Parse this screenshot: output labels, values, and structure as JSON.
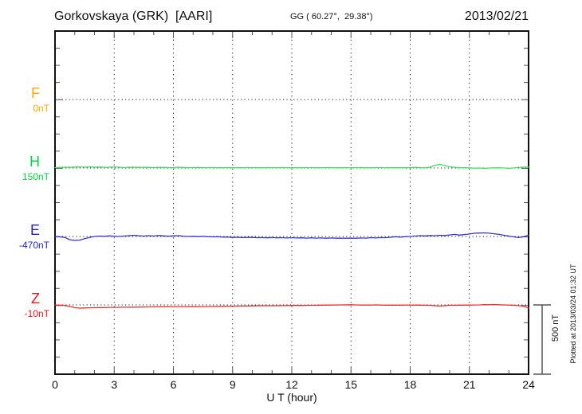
{
  "header": {
    "station_title": "Gorkovskaya (GRK)  [AARI]",
    "coordinates": "GG ( 60.27°,  29.38°)",
    "date": "2013/02/21"
  },
  "side": {
    "scale_label": "500 nT",
    "plotted_note": "Plotted at 2013/03/24 01:32 UT"
  },
  "channels": [
    {
      "id": "F",
      "label": "F",
      "baseline_label": "0nT",
      "base_value": 0,
      "color": "#FFAA00",
      "trace_color": "#FFAA00"
    },
    {
      "id": "H",
      "label": "H",
      "baseline_label": "150nT",
      "base_value": 150,
      "color": "#00D93E",
      "trace_color": "#3FDE63"
    },
    {
      "id": "E",
      "label": "E",
      "baseline_label": "-470nT",
      "base_value": -470,
      "color": "#2121E8",
      "trace_color": "#3434CE"
    },
    {
      "id": "Z",
      "label": "Z",
      "baseline_label": "-10nT",
      "base_value": -10,
      "color": "#F01616",
      "trace_color": "#E43030"
    }
  ],
  "chart_data": {
    "type": "line",
    "title": "Gorkovskaya (GRK) [AARI] magnetogram, 2013/02/21",
    "xlabel": "U T (hour)",
    "ylabel": "nT",
    "x_range": [
      0,
      24
    ],
    "x_ticks": [
      0,
      3,
      6,
      9,
      12,
      15,
      18,
      21,
      24
    ],
    "x_minor_tick": 1,
    "y_minor_tick_nT": 125,
    "scale_bar_nT": 500,
    "grid": "dotted vertical lines every 3 h; dotted horizontal line at each channel baseline",
    "legend_position": "left margin (colored channel letters)",
    "series": [
      {
        "name": "F",
        "baseline_nT": 0,
        "units": "nT",
        "points": []
      },
      {
        "name": "H",
        "baseline_nT": 150,
        "units": "nT",
        "points": [
          [
            0,
            153
          ],
          [
            0.25,
            154
          ],
          [
            0.5,
            156
          ],
          [
            0.75,
            155
          ],
          [
            1,
            157
          ],
          [
            1.25,
            158
          ],
          [
            1.5,
            156
          ],
          [
            1.75,
            158
          ],
          [
            2,
            156
          ],
          [
            2.25,
            157
          ],
          [
            2.5,
            155
          ],
          [
            2.75,
            156
          ],
          [
            3,
            158
          ],
          [
            3.25,
            156
          ],
          [
            3.5,
            153
          ],
          [
            3.75,
            155
          ],
          [
            4,
            156
          ],
          [
            4.25,
            154
          ],
          [
            4.5,
            155
          ],
          [
            4.75,
            154
          ],
          [
            5,
            153
          ],
          [
            5.25,
            155
          ],
          [
            5.5,
            154
          ],
          [
            5.75,
            153
          ],
          [
            6,
            153
          ],
          [
            6.25,
            156
          ],
          [
            6.5,
            154
          ],
          [
            6.75,
            153
          ],
          [
            7,
            153
          ],
          [
            7.25,
            154
          ],
          [
            7.5,
            152
          ],
          [
            7.75,
            153
          ],
          [
            8,
            153
          ],
          [
            8.25,
            152
          ],
          [
            8.5,
            152
          ],
          [
            8.75,
            153
          ],
          [
            9,
            153
          ],
          [
            9.25,
            152
          ],
          [
            9.5,
            152
          ],
          [
            9.75,
            153
          ],
          [
            10,
            153
          ],
          [
            10.25,
            152
          ],
          [
            10.5,
            152
          ],
          [
            10.75,
            153
          ],
          [
            11,
            152
          ],
          [
            11.25,
            153
          ],
          [
            11.5,
            153
          ],
          [
            11.75,
            152
          ],
          [
            12,
            152
          ],
          [
            12.25,
            153
          ],
          [
            12.5,
            152
          ],
          [
            12.75,
            153
          ],
          [
            13,
            153
          ],
          [
            13.25,
            152
          ],
          [
            13.5,
            152
          ],
          [
            13.75,
            153
          ],
          [
            14,
            153
          ],
          [
            14.25,
            152
          ],
          [
            14.5,
            152
          ],
          [
            14.75,
            153
          ],
          [
            15,
            152
          ],
          [
            15.25,
            152
          ],
          [
            15.5,
            153
          ],
          [
            15.75,
            152
          ],
          [
            16,
            152
          ],
          [
            16.25,
            153
          ],
          [
            16.5,
            153
          ],
          [
            16.75,
            152
          ],
          [
            17,
            153
          ],
          [
            17.25,
            152
          ],
          [
            17.5,
            152
          ],
          [
            17.75,
            153
          ],
          [
            18,
            153
          ],
          [
            18.25,
            155
          ],
          [
            18.5,
            153
          ],
          [
            18.75,
            152
          ],
          [
            19,
            155
          ],
          [
            19.25,
            170
          ],
          [
            19.5,
            176
          ],
          [
            19.75,
            168
          ],
          [
            20,
            159
          ],
          [
            20.25,
            155
          ],
          [
            20.5,
            153
          ],
          [
            20.75,
            152
          ],
          [
            21,
            151
          ],
          [
            21.25,
            149
          ],
          [
            21.5,
            150
          ],
          [
            21.75,
            147
          ],
          [
            22,
            150
          ],
          [
            22.25,
            151
          ],
          [
            22.5,
            152
          ],
          [
            22.75,
            150
          ],
          [
            23,
            147
          ],
          [
            23.25,
            150
          ],
          [
            23.5,
            155
          ],
          [
            23.75,
            156
          ],
          [
            24,
            157
          ]
        ]
      },
      {
        "name": "E",
        "baseline_nT": -470,
        "units": "nT",
        "points": [
          [
            0,
            -470
          ],
          [
            0.25,
            -473
          ],
          [
            0.5,
            -477
          ],
          [
            0.75,
            -494
          ],
          [
            1,
            -499
          ],
          [
            1.25,
            -497
          ],
          [
            1.5,
            -486
          ],
          [
            1.75,
            -477
          ],
          [
            2,
            -470
          ],
          [
            2.25,
            -467
          ],
          [
            2.5,
            -469
          ],
          [
            2.75,
            -466
          ],
          [
            3,
            -468
          ],
          [
            3.25,
            -470
          ],
          [
            3.5,
            -467
          ],
          [
            3.75,
            -464
          ],
          [
            4,
            -461
          ],
          [
            4.25,
            -465
          ],
          [
            4.5,
            -467
          ],
          [
            4.75,
            -464
          ],
          [
            5,
            -467
          ],
          [
            5.25,
            -463
          ],
          [
            5.5,
            -466
          ],
          [
            5.75,
            -468
          ],
          [
            6,
            -466
          ],
          [
            6.25,
            -464
          ],
          [
            6.5,
            -468
          ],
          [
            6.75,
            -470
          ],
          [
            7,
            -469
          ],
          [
            7.25,
            -471
          ],
          [
            7.5,
            -469
          ],
          [
            7.75,
            -472
          ],
          [
            8,
            -473
          ],
          [
            8.25,
            -472
          ],
          [
            8.5,
            -475
          ],
          [
            8.75,
            -474
          ],
          [
            9,
            -477
          ],
          [
            9.25,
            -476
          ],
          [
            9.5,
            -478
          ],
          [
            9.75,
            -477
          ],
          [
            10,
            -477
          ],
          [
            10.25,
            -479
          ],
          [
            10.5,
            -478
          ],
          [
            10.75,
            -480
          ],
          [
            11,
            -478
          ],
          [
            11.25,
            -480
          ],
          [
            11.5,
            -479
          ],
          [
            11.75,
            -481
          ],
          [
            12,
            -479
          ],
          [
            12.25,
            -481
          ],
          [
            12.5,
            -480
          ],
          [
            12.75,
            -482
          ],
          [
            13,
            -480
          ],
          [
            13.25,
            -482
          ],
          [
            13.5,
            -481
          ],
          [
            13.75,
            -483
          ],
          [
            14,
            -481
          ],
          [
            14.25,
            -483
          ],
          [
            14.5,
            -482
          ],
          [
            14.75,
            -483
          ],
          [
            15,
            -482
          ],
          [
            15.25,
            -483
          ],
          [
            15.5,
            -481
          ],
          [
            15.75,
            -482
          ],
          [
            16,
            -479
          ],
          [
            16.25,
            -481
          ],
          [
            16.5,
            -478
          ],
          [
            16.75,
            -479
          ],
          [
            17,
            -476
          ],
          [
            17.25,
            -472
          ],
          [
            17.5,
            -475
          ],
          [
            17.75,
            -472
          ],
          [
            18,
            -470
          ],
          [
            18.25,
            -467
          ],
          [
            18.5,
            -464
          ],
          [
            18.75,
            -466
          ],
          [
            19,
            -463
          ],
          [
            19.25,
            -465
          ],
          [
            19.5,
            -461
          ],
          [
            19.75,
            -463
          ],
          [
            20,
            -459
          ],
          [
            20.25,
            -455
          ],
          [
            20.5,
            -460
          ],
          [
            20.75,
            -456
          ],
          [
            21,
            -452
          ],
          [
            21.25,
            -447
          ],
          [
            21.5,
            -445
          ],
          [
            21.75,
            -444
          ],
          [
            22,
            -446
          ],
          [
            22.25,
            -450
          ],
          [
            22.5,
            -455
          ],
          [
            22.75,
            -461
          ],
          [
            23,
            -467
          ],
          [
            23.25,
            -473
          ],
          [
            23.5,
            -478
          ],
          [
            23.75,
            -472
          ],
          [
            24,
            -461
          ]
        ]
      },
      {
        "name": "Z",
        "baseline_nT": -10,
        "units": "nT",
        "points": [
          [
            0,
            -10
          ],
          [
            0.25,
            -12
          ],
          [
            0.5,
            -14
          ],
          [
            0.75,
            -21
          ],
          [
            1,
            -30
          ],
          [
            1.25,
            -33
          ],
          [
            1.5,
            -32
          ],
          [
            1.75,
            -31
          ],
          [
            2,
            -30
          ],
          [
            2.25,
            -29
          ],
          [
            2.5,
            -29
          ],
          [
            2.75,
            -28
          ],
          [
            3,
            -28
          ],
          [
            3.5,
            -27
          ],
          [
            4,
            -26
          ],
          [
            4.5,
            -25
          ],
          [
            5,
            -24
          ],
          [
            5.5,
            -23
          ],
          [
            6,
            -22
          ],
          [
            6.5,
            -22
          ],
          [
            7,
            -23
          ],
          [
            7.5,
            -22
          ],
          [
            8,
            -21
          ],
          [
            8.5,
            -20
          ],
          [
            9,
            -19
          ],
          [
            9.5,
            -18
          ],
          [
            10,
            -17
          ],
          [
            10.5,
            -16
          ],
          [
            11,
            -16
          ],
          [
            11.5,
            -15
          ],
          [
            12,
            -14
          ],
          [
            12.5,
            -14
          ],
          [
            13,
            -13
          ],
          [
            13.5,
            -12
          ],
          [
            14,
            -11
          ],
          [
            14.5,
            -10
          ],
          [
            15,
            -9
          ],
          [
            15.25,
            -10
          ],
          [
            15.5,
            -11
          ],
          [
            16,
            -11
          ],
          [
            16.25,
            -10
          ],
          [
            16.5,
            -11
          ],
          [
            17,
            -12
          ],
          [
            17.5,
            -12
          ],
          [
            18,
            -11
          ],
          [
            18.5,
            -12
          ],
          [
            19,
            -13
          ],
          [
            19.25,
            -16
          ],
          [
            19.5,
            -18
          ],
          [
            19.75,
            -16
          ],
          [
            20,
            -13
          ],
          [
            20.5,
            -12
          ],
          [
            21,
            -11
          ],
          [
            21.5,
            -10
          ],
          [
            21.75,
            -8
          ],
          [
            22,
            -9
          ],
          [
            22.25,
            -7
          ],
          [
            22.5,
            -9
          ],
          [
            23,
            -11
          ],
          [
            23.25,
            -13
          ],
          [
            23.5,
            -15
          ],
          [
            23.75,
            -20
          ],
          [
            24,
            -33
          ]
        ]
      }
    ]
  }
}
